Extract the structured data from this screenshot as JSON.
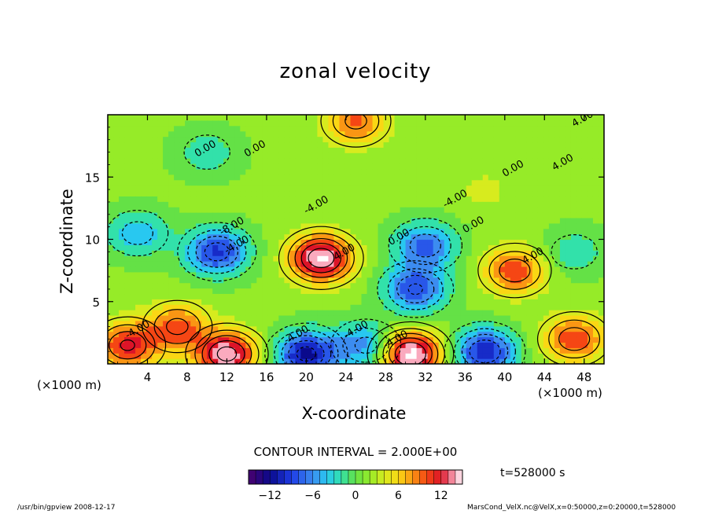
{
  "chart_data": {
    "type": "heatmap",
    "title": "zonal velocity",
    "xlabel": "X-coordinate",
    "ylabel": "Z-coordinate",
    "x_unit_left": "(×1000 m)",
    "x_unit_right": "(×1000 m)",
    "x_ticks": [
      "4",
      "8",
      "12",
      "16",
      "20",
      "24",
      "28",
      "32",
      "36",
      "40",
      "44",
      "48"
    ],
    "y_ticks": [
      "5",
      "10",
      "15"
    ],
    "xlim": [
      0,
      50
    ],
    "ylim": [
      0,
      20
    ],
    "contour_interval": "CONTOUR INTERVAL = 2.000E+00",
    "contour_labels": [
      "0.00",
      "0.00",
      "-4.00",
      "-4.00",
      "-8.00",
      "-4.00",
      "-4.00",
      "0.00",
      "-4.00",
      "0.00",
      "0.00",
      "4.00",
      "4.00",
      "4.00",
      "4.00",
      "-4.00",
      "-4.00"
    ],
    "colorbar": {
      "min": -15,
      "max": 15,
      "ticks": [
        "−12",
        "−6",
        "0",
        "6",
        "12"
      ],
      "tick_values": [
        -12,
        -6,
        0,
        6,
        12
      ]
    },
    "time_label": "t=528000 s",
    "features": [
      {
        "x": 21.5,
        "z": 8.5,
        "value": 14
      },
      {
        "x": 11.0,
        "z": 9.0,
        "value": -11
      },
      {
        "x": 31.0,
        "z": 6.0,
        "value": -10
      },
      {
        "x": 32.0,
        "z": 9.5,
        "value": -9
      },
      {
        "x": 41.0,
        "z": 7.5,
        "value": 9
      },
      {
        "x": 3.0,
        "z": 10.5,
        "value": -6
      },
      {
        "x": 12.0,
        "z": 0.8,
        "value": 13
      },
      {
        "x": 2.0,
        "z": 1.5,
        "value": 10
      },
      {
        "x": 7.0,
        "z": 3.0,
        "value": 8
      },
      {
        "x": 30.5,
        "z": 0.8,
        "value": 15
      },
      {
        "x": 20.0,
        "z": 0.8,
        "value": -13
      },
      {
        "x": 26.0,
        "z": 1.5,
        "value": -8
      },
      {
        "x": 38.0,
        "z": 1.0,
        "value": -12
      },
      {
        "x": 47.0,
        "z": 2.0,
        "value": 9
      },
      {
        "x": 25.0,
        "z": 19.5,
        "value": 8
      },
      {
        "x": 10.0,
        "z": 17.0,
        "value": -4
      },
      {
        "x": 38.0,
        "z": 14.0,
        "value": 2
      },
      {
        "x": 47.0,
        "z": 9.0,
        "value": -4
      }
    ]
  },
  "footer": {
    "left": "/usr/bin/gpview  2008-12-17",
    "right": "MarsCond_VelX.nc@VelX,x=0:50000,z=0:20000,t=528000"
  }
}
